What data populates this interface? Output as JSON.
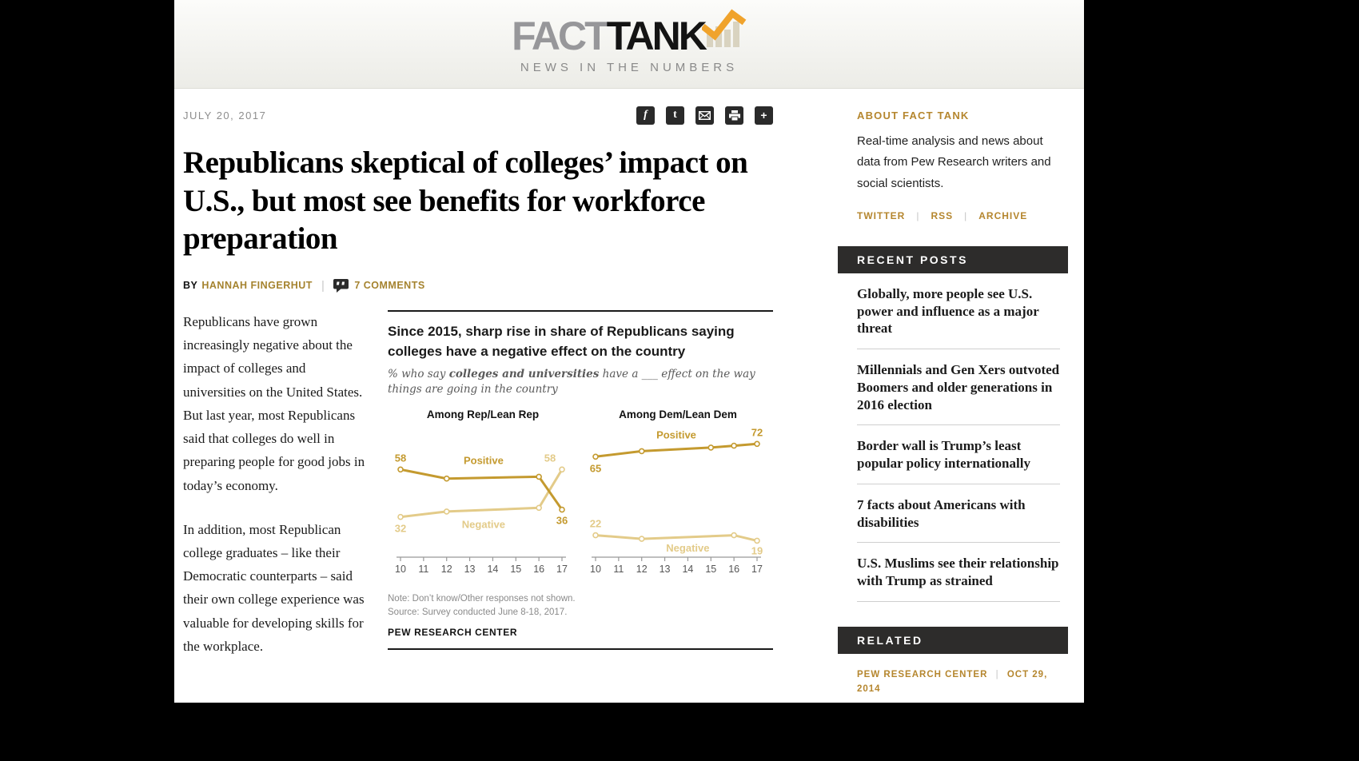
{
  "masthead": {
    "brand_fact": "FACT",
    "brand_tank": "TANK",
    "tagline": "NEWS IN THE NUMBERS"
  },
  "article": {
    "date": "JULY 20, 2017",
    "title": "Republicans skeptical of colleges’ impact on U.S., but most see benefits for workforce preparation",
    "byline_prefix": "BY",
    "author": "HANNAH FINGERHUT",
    "separator": "|",
    "comments_label": "7 COMMENTS",
    "paragraphs": [
      "Republicans have grown increasingly negative about the impact of colleges and universities on the United States. But last year, most Republicans said that colleges do well in preparing people for good jobs in today’s economy.",
      "In addition, most Republican college graduates – like their Democratic counterparts – said their own college experience was valuable for developing skills for the workplace."
    ]
  },
  "share": {
    "icons": [
      "facebook-icon",
      "twitter-icon",
      "email-icon",
      "print-icon",
      "more-icon"
    ]
  },
  "chart": {
    "title": "Since 2015, sharp rise in share of Republicans saying colleges have a negative effect on the country",
    "subtitle_prefix": "% who say ",
    "subtitle_emphasis": "colleges and universities",
    "subtitle_suffix": " have a ___ effect on the way things are going in the country",
    "note": "Note: Don’t know/Other responses not shown.",
    "source": "Source: Survey conducted June 8-18, 2017.",
    "brand": "PEW RESEARCH CENTER"
  },
  "chart_data": {
    "type": "line",
    "x_tick_labels": [
      "10",
      "11",
      "12",
      "13",
      "14",
      "15",
      "16",
      "17"
    ],
    "x_range": [
      10,
      17
    ],
    "y_range_implied": [
      10,
      80
    ],
    "unit": "% of partisans saying each",
    "legend_position": "inline-labels",
    "grid": false,
    "panels": [
      {
        "title": "Among Rep/Lean Rep",
        "series": [
          {
            "name": "Positive",
            "color": "#C49A2F",
            "x": [
              10,
              12,
              16,
              17
            ],
            "values": [
              58,
              53,
              54,
              36
            ],
            "point_labels": [
              {
                "text": "58",
                "x": 10,
                "v": 58,
                "dy": -10
              },
              {
                "text": "36",
                "x": 17,
                "v": 36,
                "dy": 18
              }
            ],
            "name_label": {
              "x": 13.6,
              "v": 61
            }
          },
          {
            "name": "Negative",
            "color": "#E3CB89",
            "x": [
              10,
              12,
              16,
              17
            ],
            "values": [
              32,
              35,
              37,
              58
            ],
            "point_labels": [
              {
                "text": "32",
                "x": 10,
                "v": 32,
                "dy": 19
              },
              {
                "text": "58",
                "x": 17,
                "v": 58,
                "dx": -15,
                "dy": -10
              }
            ],
            "name_label": {
              "x": 13.6,
              "v": 26
            }
          }
        ]
      },
      {
        "title": "Among Dem/Lean Dem",
        "series": [
          {
            "name": "Positive",
            "color": "#C49A2F",
            "x": [
              10,
              12,
              15,
              16,
              17
            ],
            "values": [
              65,
              68,
              70,
              71,
              72
            ],
            "point_labels": [
              {
                "text": "65",
                "x": 10,
                "v": 65,
                "dy": 19
              },
              {
                "text": "72",
                "x": 17,
                "v": 72,
                "dy": -10
              }
            ],
            "name_label": {
              "x": 13.5,
              "v": 75
            }
          },
          {
            "name": "Negative",
            "color": "#E3CB89",
            "x": [
              10,
              12,
              16,
              17
            ],
            "values": [
              22,
              20,
              22,
              19
            ],
            "point_labels": [
              {
                "text": "22",
                "x": 10,
                "v": 22,
                "dy": -10
              },
              {
                "text": "19",
                "x": 17,
                "v": 19,
                "dy": 17
              }
            ],
            "name_label": {
              "x": 14,
              "v": 13
            }
          }
        ]
      }
    ]
  },
  "sidebar": {
    "about": {
      "header": "ABOUT FACT TANK",
      "text": "Real-time analysis and news about data from Pew Research writers and social scientists.",
      "links": [
        "TWITTER",
        "RSS",
        "ARCHIVE"
      ],
      "separator": "|"
    },
    "recent_posts": {
      "header": "RECENT POSTS",
      "items": [
        "Globally, more people see U.S. power and influence as a major threat",
        "Millennials and Gen Xers outvoted Boomers and older generations in 2016 election",
        "Border wall is Trump’s least popular policy internationally",
        "7 facts about Americans with disabilities",
        "U.S. Muslims see their relationship with Trump as strained"
      ]
    },
    "related": {
      "header": "RELATED",
      "meta_source": "PEW RESEARCH CENTER",
      "separator": "|",
      "meta_date": "OCT 29, 2014"
    }
  },
  "colors": {
    "accent_gold": "#A5832F",
    "line_positive": "#C49A2F",
    "line_negative": "#E3CB89",
    "dark_bar": "#2D2C2B",
    "logo_orange": "#F0A32C",
    "logo_bars": "#D9D3C0"
  }
}
